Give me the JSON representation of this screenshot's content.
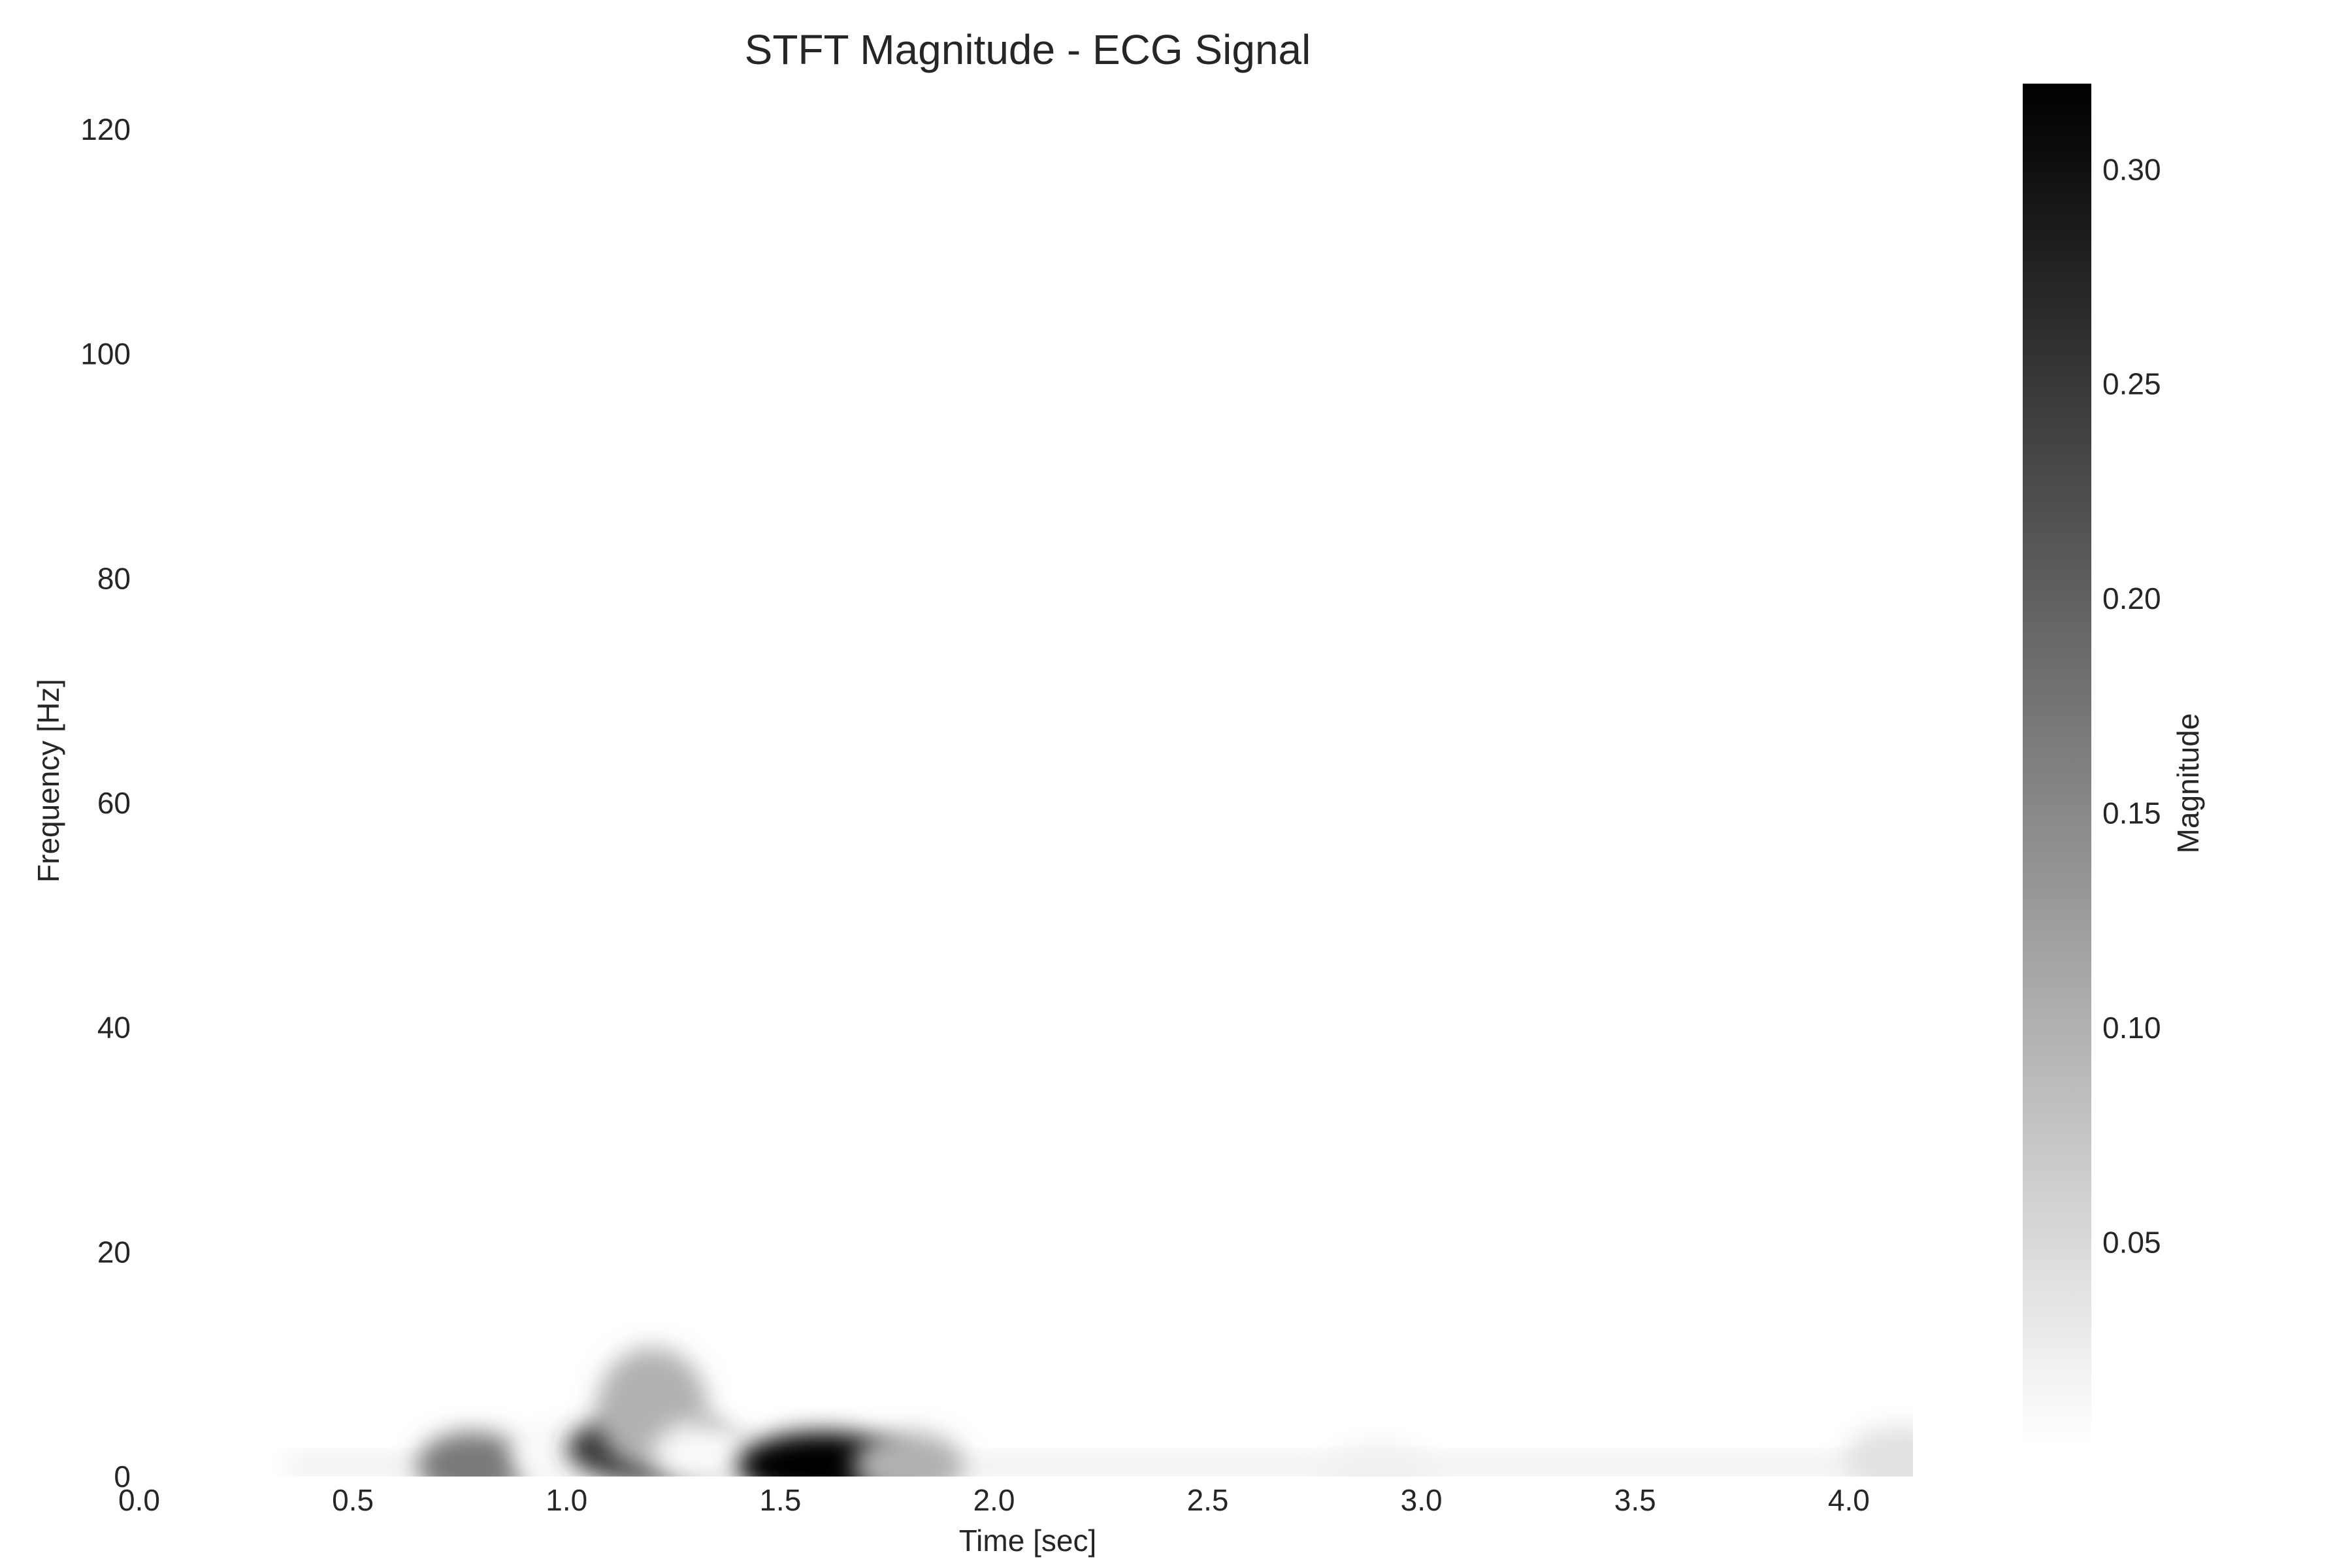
{
  "chart_data": {
    "type": "heatmap",
    "title": "STFT Magnitude - ECG Signal",
    "xlabel": "Time [sec]",
    "ylabel": "Frequency [Hz]",
    "xlim": [
      0.0,
      4.15
    ],
    "ylim": [
      0,
      125
    ],
    "x_ticks": [
      "0.0",
      "0.5",
      "1.0",
      "1.5",
      "2.0",
      "2.5",
      "3.0",
      "3.5",
      "4.0"
    ],
    "y_ticks": [
      "0",
      "20",
      "40",
      "60",
      "80",
      "100",
      "120"
    ],
    "colormap": "gray_r",
    "grid": false,
    "colorbar": {
      "label": "Magnitude",
      "range": [
        0.003,
        0.32
      ],
      "ticks": [
        "0.05",
        "0.10",
        "0.15",
        "0.20",
        "0.25",
        "0.30"
      ],
      "tick_values": [
        0.05,
        0.1,
        0.15,
        0.2,
        0.25,
        0.3
      ]
    },
    "blobs": [
      {
        "t": 0.78,
        "f": 1.0,
        "magnitude": 0.17
      },
      {
        "t": 1.0,
        "f": 2.0,
        "magnitude": 0.01
      },
      {
        "t": 1.2,
        "f": 2.5,
        "magnitude": 0.26
      },
      {
        "t": 1.2,
        "f": 6.0,
        "magnitude": 0.1
      },
      {
        "t": 1.33,
        "f": 2.0,
        "magnitude": 0.01
      },
      {
        "t": 1.6,
        "f": 1.0,
        "magnitude": 0.32
      },
      {
        "t": 1.8,
        "f": 1.0,
        "magnitude": 0.1
      },
      {
        "t": 2.9,
        "f": 0.0,
        "magnitude": 0.02
      },
      {
        "t": 4.12,
        "f": 1.5,
        "magnitude": 0.04
      }
    ]
  }
}
